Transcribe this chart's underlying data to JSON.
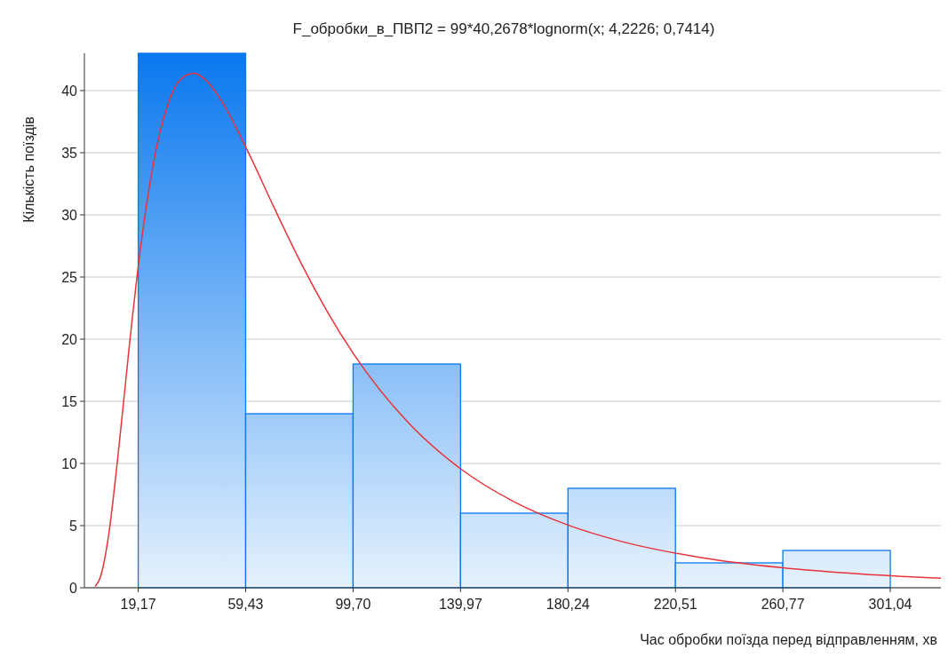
{
  "chart_data": {
    "type": "histogram",
    "title": "F_обробки_в_ПВП2 = 99*40,2678*lognorm(x; 4,2226; 0,7414)",
    "xlabel": "Час обробки поїзда перед відправленням, хв",
    "ylabel": "Кількість поїздів",
    "xlim": [
      -1,
      320
    ],
    "ylim": [
      0,
      43
    ],
    "xticks": [
      {
        "value": 19.17,
        "label": "19,17"
      },
      {
        "value": 59.43,
        "label": "59,43"
      },
      {
        "value": 99.7,
        "label": "99,70"
      },
      {
        "value": 139.97,
        "label": "139,97"
      },
      {
        "value": 180.24,
        "label": "180,24"
      },
      {
        "value": 220.51,
        "label": "220,51"
      },
      {
        "value": 260.77,
        "label": "260,77"
      },
      {
        "value": 301.04,
        "label": "301,04"
      }
    ],
    "yticks": [
      0,
      5,
      10,
      15,
      20,
      25,
      30,
      35,
      40
    ],
    "grid": "y",
    "series": [
      {
        "color": "#0a78f0",
        "bins": [
          19.17,
          59.43,
          99.7,
          139.97,
          180.24,
          220.51,
          260.77,
          301.04
        ],
        "values": [
          43,
          14,
          18,
          6,
          8,
          2,
          3
        ]
      },
      {
        "type": "line",
        "color": "#e8333a",
        "x": [
          3,
          5,
          8,
          12,
          16,
          20,
          25,
          30,
          35,
          40,
          45,
          50,
          60,
          70,
          80,
          90,
          100,
          120,
          140,
          160,
          180,
          200,
          230,
          260,
          290,
          320
        ],
        "values": [
          0.1,
          0.86,
          4.11,
          11.46,
          19.8,
          27.27,
          34.32,
          38.7,
          40.88,
          41.39,
          40.73,
          39.3,
          35.22,
          30.63,
          26.2,
          22.23,
          18.78,
          13.37,
          9.57,
          6.92,
          5.06,
          3.74,
          2.43,
          1.62,
          1.1,
          0.76
        ]
      }
    ]
  }
}
